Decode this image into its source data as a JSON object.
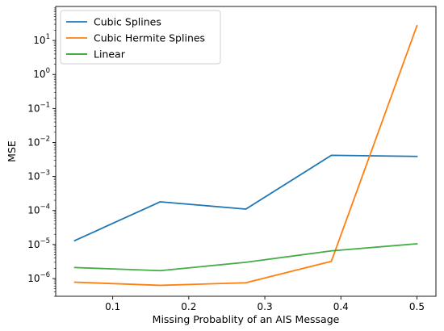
{
  "chart_data": {
    "type": "line",
    "title": "",
    "xlabel": "Missing Probablity of an AIS Message",
    "ylabel": "MSE",
    "xscale": "linear",
    "yscale": "log",
    "xlim": [
      0.025,
      0.525
    ],
    "ylim": [
      3e-07,
      100
    ],
    "xticks": [
      {
        "value": 0.1,
        "label": "0.1"
      },
      {
        "value": 0.2,
        "label": "0.2"
      },
      {
        "value": 0.3,
        "label": "0.3"
      },
      {
        "value": 0.4,
        "label": "0.4"
      },
      {
        "value": 0.5,
        "label": "0.5"
      }
    ],
    "yticks": [
      {
        "exp": -6,
        "label_base": "10",
        "label_exp": "−6"
      },
      {
        "exp": -5,
        "label_base": "10",
        "label_exp": "−5"
      },
      {
        "exp": -4,
        "label_base": "10",
        "label_exp": "−4"
      },
      {
        "exp": -3,
        "label_base": "10",
        "label_exp": "−3"
      },
      {
        "exp": -2,
        "label_base": "10",
        "label_exp": "−2"
      },
      {
        "exp": -1,
        "label_base": "10",
        "label_exp": "−1"
      },
      {
        "exp": 0,
        "label_base": "10",
        "label_exp": "0"
      },
      {
        "exp": 1,
        "label_base": "10",
        "label_exp": "1"
      }
    ],
    "grid": false,
    "legend_position": "top-left",
    "x": [
      0.05,
      0.1625,
      0.275,
      0.3875,
      0.5
    ],
    "series": [
      {
        "name": "Cubic Splines",
        "color": "#1f77b4",
        "values": [
          1.3e-05,
          0.00018,
          0.00011,
          0.0042,
          0.0039
        ]
      },
      {
        "name": "Cubic Hermite Splines",
        "color": "#ff7f0e",
        "values": [
          7.8e-07,
          6.3e-07,
          7.5e-07,
          3.2e-06,
          27
        ]
      },
      {
        "name": "Linear",
        "color": "#2ca02c",
        "values": [
          2.1e-06,
          1.7e-06,
          3e-06,
          6.5e-06,
          1.05e-05
        ]
      }
    ]
  }
}
